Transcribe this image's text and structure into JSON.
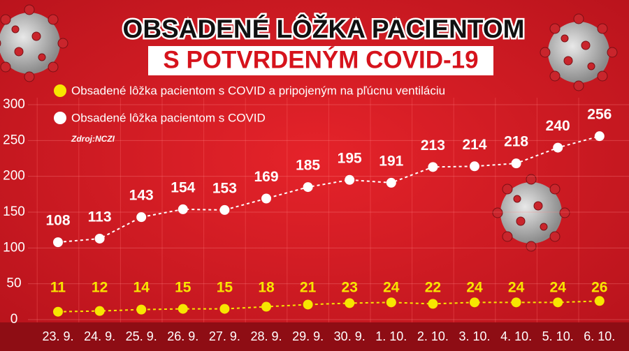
{
  "chart_data": {
    "type": "line",
    "title": "OBSADENÉ LÔŽKA PACIENTOM",
    "subtitle": "S POTVRDENÝM COVID-19",
    "source": "Zdroj:NCZI",
    "categories": [
      "23. 9.",
      "24. 9.",
      "25. 9.",
      "26. 9.",
      "27. 9.",
      "28. 9.",
      "29. 9.",
      "30. 9.",
      "1. 10.",
      "2. 10.",
      "3. 10.",
      "4. 10.",
      "5. 10.",
      "6. 10."
    ],
    "series": [
      {
        "name": "Obsadené lôžka pacientom s COVID a pripojeným na pľúcnu ventiláciu",
        "color": "#f7e600",
        "values": [
          11,
          12,
          14,
          15,
          15,
          18,
          21,
          23,
          24,
          22,
          24,
          24,
          24,
          26
        ]
      },
      {
        "name": "Obsadené lôžka pacientom s COVID",
        "color": "#ffffff",
        "values": [
          108,
          113,
          143,
          154,
          153,
          169,
          185,
          195,
          191,
          213,
          214,
          218,
          240,
          256
        ]
      }
    ],
    "ylim": [
      0,
      300
    ],
    "yticks": [
      0,
      50,
      100,
      150,
      200,
      250,
      300
    ],
    "grid": true
  }
}
